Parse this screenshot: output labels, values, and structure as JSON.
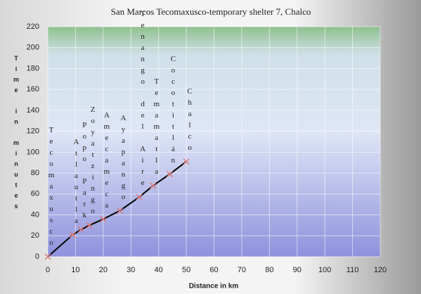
{
  "chart_data": {
    "type": "line",
    "title": "San Marcos Tecomaxusco-temporary shelter 7, Chalco",
    "x_label": "Distance in km",
    "y_label": "Time in minutes",
    "x": [
      0,
      9,
      12,
      15,
      20,
      26,
      33,
      38,
      44,
      50
    ],
    "values": [
      0,
      21,
      26,
      30,
      36,
      44,
      57,
      68,
      79,
      91
    ],
    "point_labels": [
      "Tecomaxusco",
      "Atlautla",
      "Popo Park",
      "Zoyatzingo",
      "Amecameca",
      "Ayapango",
      "Tenango del Aire",
      "Temamatla",
      "Cocotitlán",
      "Chalco"
    ],
    "color": "#000000",
    "marker_color": "#e07a7a",
    "xlim": [
      0,
      120
    ],
    "xticks": [
      0,
      10,
      20,
      30,
      40,
      50,
      60,
      70,
      80,
      90,
      100,
      110,
      120
    ],
    "ylim": [
      0,
      220
    ],
    "yticks": [
      0,
      20,
      40,
      60,
      80,
      100,
      120,
      140,
      160,
      180,
      200,
      220
    ],
    "grid": true
  }
}
